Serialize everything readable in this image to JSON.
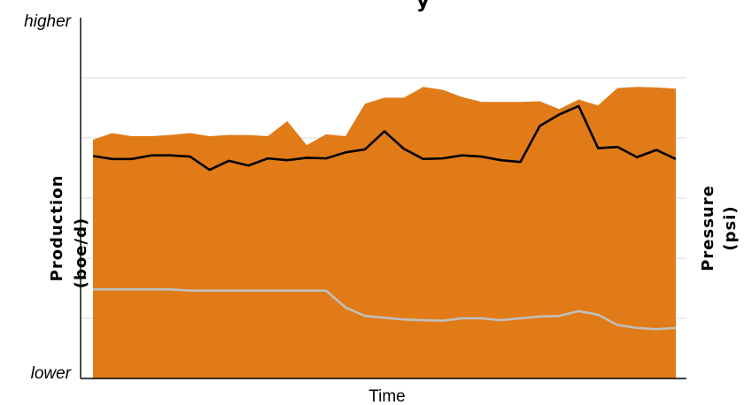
{
  "chart_data": {
    "type": "area",
    "title": "y",
    "title_visible_fragment": "y",
    "xlabel": "Time",
    "ylabel_left": "Production (boe/d)",
    "ylabel_left_lines": [
      "Production",
      "(boe/d)"
    ],
    "ylabel_right": "Pressure (psi)",
    "ylabel_right_lines": [
      "Pressure",
      "(psi)"
    ],
    "y_top_label": "higher",
    "y_bottom_label": "lower",
    "ylim": [
      0,
      6
    ],
    "grid": true,
    "legend": "none",
    "x": [
      1,
      2,
      3,
      4,
      5,
      6,
      7,
      8,
      9,
      10,
      11,
      12,
      13,
      14,
      15,
      16,
      17,
      18,
      19,
      20,
      21,
      22,
      23,
      24,
      25,
      26,
      27,
      28,
      29,
      30,
      31
    ],
    "series": [
      {
        "kind": "area",
        "color": "#e07b18",
        "values": [
          3.97,
          4.08,
          4.03,
          4.03,
          4.05,
          4.08,
          4.03,
          4.05,
          4.05,
          4.03,
          4.28,
          3.88,
          4.06,
          4.03,
          4.57,
          4.67,
          4.67,
          4.85,
          4.8,
          4.68,
          4.6,
          4.6,
          4.6,
          4.61,
          4.48,
          4.64,
          4.54,
          4.83,
          4.85,
          4.84,
          4.82
        ]
      },
      {
        "kind": "line",
        "color": "#000000",
        "values": [
          3.7,
          3.65,
          3.65,
          3.71,
          3.71,
          3.69,
          3.47,
          3.62,
          3.54,
          3.66,
          3.63,
          3.67,
          3.66,
          3.76,
          3.81,
          4.11,
          3.82,
          3.65,
          3.66,
          3.71,
          3.69,
          3.63,
          3.6,
          4.2,
          4.39,
          4.53,
          3.83,
          3.85,
          3.68,
          3.8,
          3.65
        ]
      },
      {
        "kind": "line",
        "color": "#bfbfbf",
        "values": [
          1.48,
          1.48,
          1.48,
          1.48,
          1.48,
          1.46,
          1.46,
          1.46,
          1.46,
          1.46,
          1.46,
          1.46,
          1.46,
          1.18,
          1.04,
          1.01,
          0.98,
          0.97,
          0.96,
          1.0,
          1.0,
          0.97,
          1.0,
          1.03,
          1.04,
          1.12,
          1.06,
          0.89,
          0.84,
          0.82,
          0.84
        ]
      }
    ],
    "colors": {
      "grid": "#d9d9d9",
      "axis": "#000000",
      "area": "#e07b18"
    }
  }
}
